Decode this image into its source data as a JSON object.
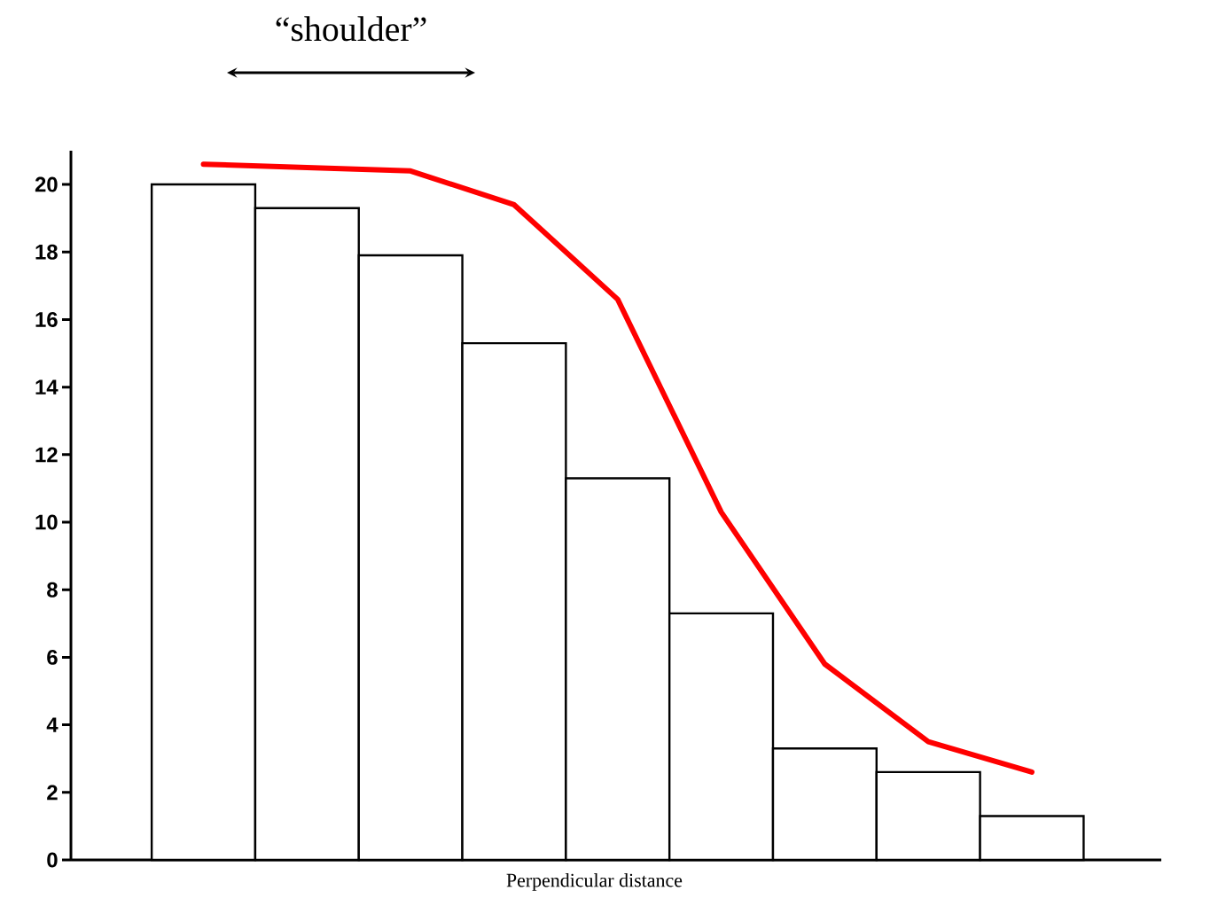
{
  "chart_data": {
    "type": "bar",
    "categories": [
      null,
      null,
      null,
      null,
      null,
      null,
      null,
      null,
      null
    ],
    "xlabel": "Perpendicular distance",
    "annotations": [
      "“shoulder”"
    ],
    "ylim": [
      0,
      21
    ],
    "yticks": [
      0,
      2,
      4,
      6,
      8,
      10,
      12,
      14,
      16,
      18,
      20
    ],
    "series": [
      {
        "color": "#ffffff",
        "values": [
          20,
          19.3,
          17.9,
          15.3,
          11.3,
          7.3,
          3.3,
          2.6,
          1.3
        ]
      },
      {
        "type": "line",
        "color": "#ff0000",
        "line_style": "solid",
        "values": [
          20.6,
          20.5,
          20.4,
          19.4,
          16.6,
          10.3,
          5.8,
          3.5,
          2.6
        ]
      }
    ]
  }
}
